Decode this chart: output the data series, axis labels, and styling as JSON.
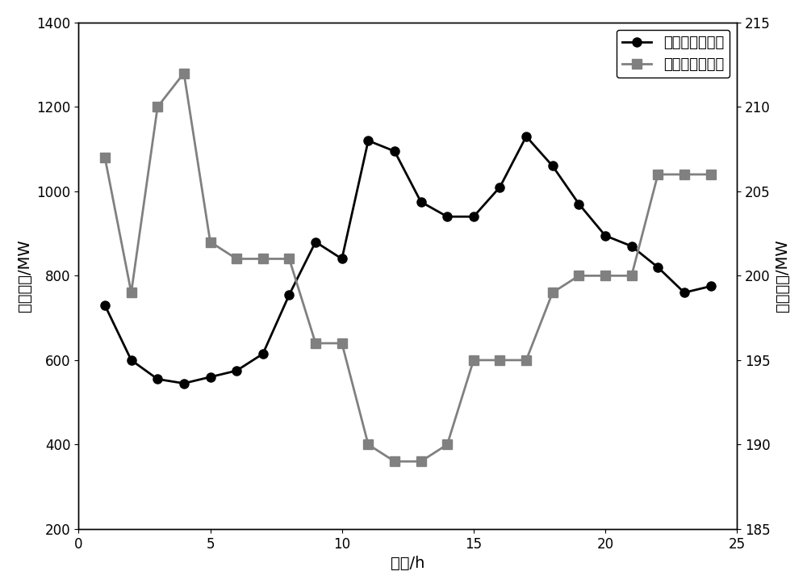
{
  "hours": [
    1,
    2,
    3,
    4,
    5,
    6,
    7,
    8,
    9,
    10,
    11,
    12,
    13,
    14,
    15,
    16,
    17,
    18,
    19,
    20,
    21,
    22,
    23,
    24
  ],
  "electric_load": [
    730,
    600,
    555,
    545,
    560,
    575,
    615,
    755,
    880,
    840,
    1120,
    1095,
    975,
    940,
    940,
    1010,
    1130,
    1060,
    970,
    895,
    870,
    820,
    760,
    775
  ],
  "thermal_load": [
    207,
    199,
    210,
    212,
    202,
    201,
    201,
    201,
    196,
    196,
    190,
    189,
    189,
    190,
    195,
    195,
    195,
    199,
    200,
    200,
    200,
    206,
    206,
    206
  ],
  "electric_color": "#000000",
  "thermal_color": "#808080",
  "ylabel_left": "电力负荷/MW",
  "ylabel_right": "热力负荷/MW",
  "xlabel": "时段/h",
  "legend_electric": "电力负荷预测值",
  "legend_thermal": "热力负荷预测值",
  "ylim_left": [
    200,
    1400
  ],
  "ylim_right": [
    185,
    215
  ],
  "xlim": [
    0,
    25
  ],
  "xticks": [
    0,
    5,
    10,
    15,
    20,
    25
  ],
  "yticks_left": [
    200,
    400,
    600,
    800,
    1000,
    1200,
    1400
  ],
  "yticks_right": [
    185,
    190,
    195,
    200,
    205,
    210,
    215
  ]
}
